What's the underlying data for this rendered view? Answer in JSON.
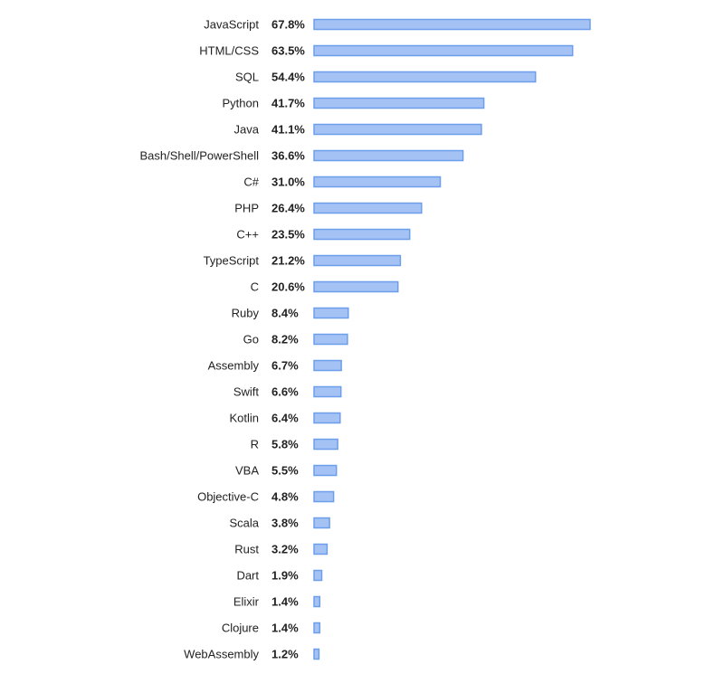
{
  "chart_data": {
    "type": "bar",
    "orientation": "horizontal",
    "categories": [
      "JavaScript",
      "HTML/CSS",
      "SQL",
      "Python",
      "Java",
      "Bash/Shell/PowerShell",
      "C#",
      "PHP",
      "C++",
      "TypeScript",
      "C",
      "Ruby",
      "Go",
      "Assembly",
      "Swift",
      "Kotlin",
      "R",
      "VBA",
      "Objective-C",
      "Scala",
      "Rust",
      "Dart",
      "Elixir",
      "Clojure",
      "WebAssembly"
    ],
    "values": [
      67.8,
      63.5,
      54.4,
      41.7,
      41.1,
      36.6,
      31.0,
      26.4,
      23.5,
      21.2,
      20.6,
      8.4,
      8.2,
      6.7,
      6.6,
      6.4,
      5.8,
      5.5,
      4.8,
      3.8,
      3.2,
      1.9,
      1.4,
      1.4,
      1.2
    ],
    "value_labels": [
      "67.8%",
      "63.5%",
      "54.4%",
      "41.7%",
      "41.1%",
      "36.6%",
      "31.0%",
      "26.4%",
      "23.5%",
      "21.2%",
      "20.6%",
      "8.4%",
      "8.2%",
      "6.7%",
      "6.6%",
      "6.4%",
      "5.8%",
      "5.5%",
      "4.8%",
      "3.8%",
      "3.2%",
      "1.9%",
      "1.4%",
      "1.4%",
      "1.2%"
    ],
    "title": "",
    "xlabel": "",
    "ylabel": "",
    "xlim": [
      0,
      67.8
    ],
    "grid": false,
    "legend": "none",
    "colors": {
      "bar_fill": "#a4c2f4",
      "bar_stroke": "#6d9eeb",
      "text": "#222222"
    }
  }
}
